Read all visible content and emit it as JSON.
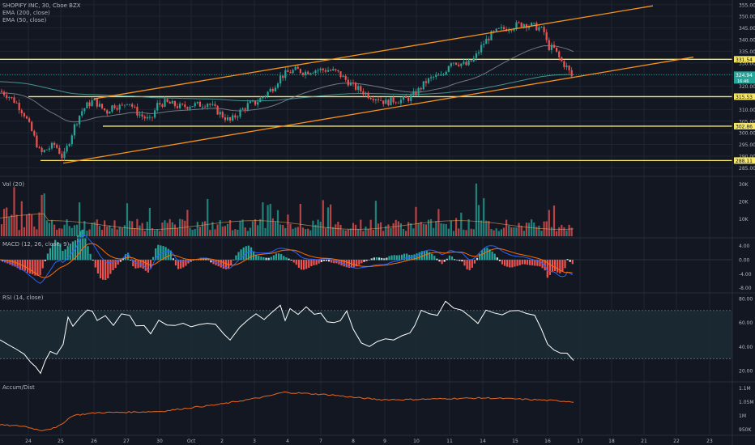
{
  "header": {
    "symbol_line": "SHOPIFY INC, 30, Cboe BZX",
    "ema200_label": "EMA (200, close)",
    "ema50_label": "EMA (50, close)"
  },
  "panels": {
    "vol_label": "Vol (20)",
    "macd_label": "MACD (12, 26, close, 9)",
    "rsi_label": "RSI (14, close)",
    "ad_label": "Accum/Dist"
  },
  "colors": {
    "background": "#131722",
    "up": "#26a69a",
    "down": "#ef5350",
    "channel": "#f7931a",
    "level": "#f5e663",
    "ema": "#4fb3a9",
    "macd_line": "#2962ff",
    "signal_line": "#ff6d00",
    "rsi": "#ffffff",
    "ad": "#e8671f"
  },
  "chart_data": [
    {
      "type": "candlestick",
      "title": "SHOPIFY INC, 30, Cboe BZX",
      "ylim": [
        282,
        357
      ],
      "ytick_labels": [
        "285.00",
        "290.00",
        "295.00",
        "300.00",
        "305.00",
        "310.00",
        "315.00",
        "320.00",
        "325.00",
        "330.00",
        "335.00",
        "340.00",
        "345.00",
        "350.00",
        "355.00"
      ],
      "price_label": "324.94",
      "price_label_sub": "16:46",
      "horizontal_levels": [
        {
          "value": 331.54,
          "label": "331.54"
        },
        {
          "value": 315.53,
          "label": "315.53"
        },
        {
          "value": 302.86,
          "label": "302.86"
        },
        {
          "value": 288.11,
          "label": "288.11"
        }
      ],
      "xtick_labels": [
        "24",
        "25",
        "26",
        "27",
        "30",
        "Oct",
        "2",
        "3",
        "4",
        "7",
        "8",
        "9",
        "10",
        "11",
        "14",
        "15",
        "16",
        "17",
        "18",
        "21",
        "22",
        "23"
      ],
      "series": [
        {
          "name": "EMA (200, close)"
        },
        {
          "name": "EMA (50, close)"
        }
      ]
    },
    {
      "type": "bar",
      "title": "Vol (20)",
      "ytick_labels": [
        "10K",
        "20K",
        "30K"
      ],
      "ylim": [
        0,
        34000
      ]
    },
    {
      "type": "histogram",
      "title": "MACD (12, 26, close, 9)",
      "ytick_labels": [
        "4.00",
        "0.00",
        "-4.00",
        "-8.00"
      ],
      "ylim": [
        -9,
        6
      ]
    },
    {
      "type": "line",
      "title": "RSI (14, close)",
      "ytick_labels": [
        "20.00",
        "40.00",
        "60.00",
        "80.00"
      ],
      "ylim": [
        12,
        84
      ],
      "bands": [
        30,
        70
      ]
    },
    {
      "type": "line",
      "title": "Accum/Dist",
      "ytick_labels": [
        "950K",
        "1M",
        "1.05M",
        "1.1M"
      ],
      "ylim": [
        930000,
        1120000
      ]
    }
  ]
}
